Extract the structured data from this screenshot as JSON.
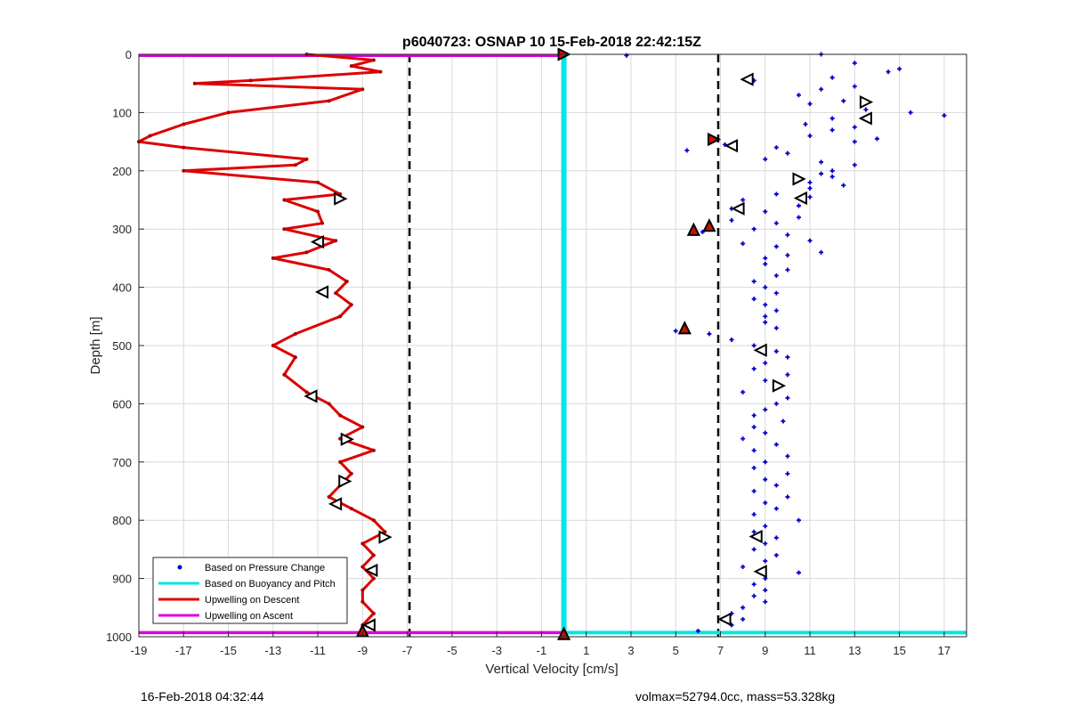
{
  "chart_data": {
    "type": "scatter",
    "title": "p6040723: OSNAP 10 15-Feb-2018 22:42:15Z",
    "xlabel": "Vertical Velocity [cm/s]",
    "ylabel": "Depth [m]",
    "xlim": [
      -19,
      18
    ],
    "ylim": [
      1000,
      0
    ],
    "xticks": [
      -19,
      -17,
      -15,
      -13,
      -11,
      -9,
      -7,
      -5,
      -3,
      -1,
      1,
      3,
      5,
      7,
      9,
      11,
      13,
      15,
      17
    ],
    "yticks": [
      0,
      100,
      200,
      300,
      400,
      500,
      600,
      700,
      800,
      900,
      1000
    ],
    "grid": true,
    "legend_position": "bottom-left",
    "legend": [
      {
        "label": "Based on Pressure Change",
        "color": "#0000cc",
        "style": "dot"
      },
      {
        "label": "Based on Buoyancy and Pitch",
        "color": "#00e5e5",
        "style": "line"
      },
      {
        "label": "Upwelling on Descent",
        "color": "#dd0000",
        "style": "line"
      },
      {
        "label": "Upwelling on Ascent",
        "color": "#dd00dd",
        "style": "line"
      }
    ],
    "reference_lines_x": [
      -6.9,
      6.9
    ],
    "buoyancy_line": {
      "x": 0,
      "depth_range": [
        0,
        995
      ]
    },
    "ascent_segments": [
      {
        "depth": 2,
        "x_range": [
          -19,
          0
        ]
      },
      {
        "depth": 993,
        "x_range": [
          -19,
          0
        ]
      }
    ],
    "bottom_line_depth": 993,
    "descent_profile": {
      "depth": [
        0,
        10,
        20,
        30,
        45,
        50,
        60,
        80,
        100,
        120,
        140,
        150,
        160,
        180,
        190,
        200,
        220,
        240,
        250,
        270,
        290,
        300,
        320,
        340,
        350,
        370,
        390,
        410,
        430,
        450,
        480,
        500,
        520,
        550,
        580,
        600,
        620,
        640,
        660,
        680,
        700,
        720,
        740,
        760,
        780,
        800,
        820,
        840,
        860,
        880,
        900,
        920,
        940,
        960,
        980,
        995
      ],
      "x": [
        -11.5,
        -8.5,
        -9.5,
        -8.2,
        -14,
        -16.5,
        -9,
        -10.5,
        -15,
        -17,
        -18.5,
        -19,
        -17,
        -11.5,
        -12,
        -17,
        -11,
        -10,
        -12.5,
        -11,
        -10.8,
        -12.5,
        -10.2,
        -11.5,
        -13,
        -10.5,
        -9.7,
        -10.2,
        -9.5,
        -10,
        -12,
        -13,
        -12,
        -12.5,
        -11.5,
        -10.5,
        -10,
        -9,
        -10,
        -8.5,
        -10,
        -9.5,
        -10,
        -10.5,
        -9.5,
        -8.5,
        -8,
        -9,
        -8.5,
        -9,
        -8.5,
        -9,
        -9,
        -8.5,
        -9,
        -9
      ]
    },
    "pressure_change_points": {
      "depth": [
        0,
        2,
        15,
        25,
        30,
        40,
        45,
        55,
        60,
        70,
        80,
        85,
        95,
        100,
        105,
        110,
        120,
        125,
        130,
        140,
        145,
        150,
        155,
        160,
        165,
        170,
        180,
        185,
        190,
        200,
        205,
        210,
        220,
        225,
        230,
        240,
        245,
        250,
        260,
        265,
        270,
        280,
        285,
        290,
        300,
        305,
        310,
        320,
        325,
        330,
        340,
        345,
        350,
        360,
        370,
        380,
        390,
        400,
        410,
        420,
        430,
        440,
        450,
        460,
        470,
        475,
        480,
        490,
        500,
        510,
        520,
        530,
        540,
        550,
        560,
        570,
        580,
        590,
        600,
        610,
        620,
        630,
        640,
        650,
        660,
        670,
        680,
        690,
        700,
        710,
        720,
        730,
        740,
        750,
        760,
        770,
        780,
        790,
        800,
        810,
        820,
        830,
        840,
        850,
        860,
        870,
        880,
        890,
        900,
        910,
        920,
        930,
        940,
        950,
        960,
        970,
        980,
        990,
        995
      ],
      "x": [
        11.5,
        2.8,
        13,
        15,
        14.5,
        12,
        8.5,
        13,
        11.5,
        10.5,
        12.5,
        11,
        13.5,
        15.5,
        17,
        12,
        10.8,
        13,
        12,
        11,
        14,
        13,
        7.2,
        9.5,
        5.5,
        10,
        9,
        11.5,
        13,
        12,
        11.5,
        12,
        11,
        12.5,
        11,
        9.5,
        11,
        8,
        10.5,
        7.5,
        9,
        10.5,
        7.5,
        9.5,
        8.5,
        6.2,
        10,
        11,
        8,
        9.5,
        11.5,
        10,
        9,
        9,
        10,
        9.5,
        8.5,
        9,
        9.5,
        8.5,
        9,
        9.5,
        9,
        9,
        9.5,
        5,
        6.5,
        7.5,
        8.5,
        9.5,
        10,
        9,
        8.5,
        10,
        9,
        9.5,
        8,
        10,
        9.5,
        9,
        8.5,
        9.8,
        8.5,
        9,
        8,
        9.5,
        8.5,
        10,
        9,
        8.5,
        10,
        9,
        9.5,
        8.5,
        10,
        9,
        9.5,
        8.5,
        10.5,
        9,
        8.5,
        9.5,
        9,
        8.5,
        9.5,
        9,
        8,
        10.5,
        9,
        8.5,
        9,
        8.5,
        9,
        8,
        7.5,
        8,
        7.5,
        6,
        -9
      ]
    },
    "markers_open": [
      {
        "x": 8.2,
        "depth": 43,
        "dir": "left"
      },
      {
        "x": 13.5,
        "depth": 82,
        "dir": "right"
      },
      {
        "x": 13.5,
        "depth": 110,
        "dir": "left"
      },
      {
        "x": 7.5,
        "depth": 157,
        "dir": "left"
      },
      {
        "x": 10.5,
        "depth": 214,
        "dir": "right"
      },
      {
        "x": 10.6,
        "depth": 247,
        "dir": "left"
      },
      {
        "x": 7.8,
        "depth": 265,
        "dir": "left"
      },
      {
        "x": -10,
        "depth": 248,
        "dir": "right"
      },
      {
        "x": -11,
        "depth": 322,
        "dir": "left"
      },
      {
        "x": -10.8,
        "depth": 408,
        "dir": "left"
      },
      {
        "x": -11.3,
        "depth": 587,
        "dir": "left"
      },
      {
        "x": -9.7,
        "depth": 661,
        "dir": "right"
      },
      {
        "x": -9.8,
        "depth": 733,
        "dir": "right"
      },
      {
        "x": -10.2,
        "depth": 772,
        "dir": "left"
      },
      {
        "x": -8,
        "depth": 829,
        "dir": "right"
      },
      {
        "x": -8.6,
        "depth": 886,
        "dir": "left"
      },
      {
        "x": -8.7,
        "depth": 980,
        "dir": "left"
      },
      {
        "x": 8.8,
        "depth": 508,
        "dir": "left"
      },
      {
        "x": 9.6,
        "depth": 569,
        "dir": "right"
      },
      {
        "x": 8.6,
        "depth": 828,
        "dir": "left"
      },
      {
        "x": 8.8,
        "depth": 888,
        "dir": "left"
      },
      {
        "x": 7.2,
        "depth": 970,
        "dir": "left"
      }
    ],
    "markers_red": [
      {
        "x": 6.7,
        "depth": 146,
        "dir": "right"
      },
      {
        "x": 5.8,
        "depth": 301,
        "dir": "up"
      },
      {
        "x": 6.5,
        "depth": 294,
        "dir": "up"
      },
      {
        "x": 5.4,
        "depth": 470,
        "dir": "up"
      },
      {
        "x": 0,
        "depth": 0,
        "dir": "right"
      },
      {
        "x": 0,
        "depth": 995,
        "dir": "up"
      },
      {
        "x": -9,
        "depth": 990,
        "dir": "up"
      }
    ]
  },
  "footer": {
    "left": "16-Feb-2018 04:32:44",
    "right": "volmax=52794.0cc, mass=53.328kg"
  },
  "colors": {
    "descent": "#dd0000",
    "ascent": "#dd00dd",
    "buoyancy": "#00e5e5",
    "pressure": "#0000cc",
    "grid": "#d9d9d9",
    "reference": "#000000"
  }
}
